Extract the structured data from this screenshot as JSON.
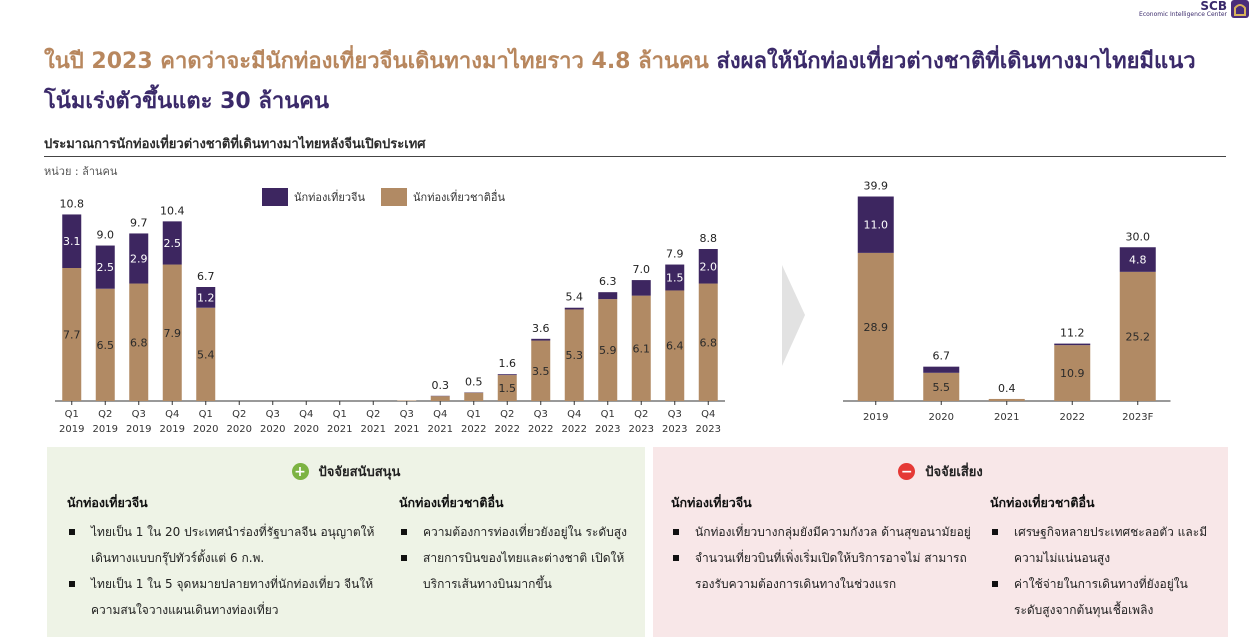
{
  "logo": {
    "brand": "SCB",
    "tagline": "Economic Intelligence Center"
  },
  "headline": {
    "part1": "ในปี 2023 คาดว่าจะมีนักท่องเที่ยวจีนเดินทางมาไทยราว 4.8 ล้านคน",
    "part2": "ส่งผลให้นักท่องเที่ยวต่างชาติที่เดินทางมาไทยมีแนวโน้มเร่งตัวขึ้นแตะ 30 ล้านคน"
  },
  "subtitle": "ประมาณการนักท่องเที่ยวต่างชาติที่เดินทางมาไทยหลังจีนเปิดประเทศ",
  "unit": "หน่วย : ล้านคน",
  "colors": {
    "china": "#3d2660",
    "others": "#b18a64",
    "arrow": "#e0e0e0"
  },
  "chart_data": [
    {
      "type": "bar",
      "stacked": true,
      "legend": [
        "นักท่องเที่ยวจีน",
        "นักท่องเที่ยวชาติอื่น"
      ],
      "categories": [
        [
          "Q1",
          "2019"
        ],
        [
          "Q2",
          "2019"
        ],
        [
          "Q3",
          "2019"
        ],
        [
          "Q4",
          "2019"
        ],
        [
          "Q1",
          "2020"
        ],
        [
          "Q2",
          "2020"
        ],
        [
          "Q3",
          "2020"
        ],
        [
          "Q4",
          "2020"
        ],
        [
          "Q1",
          "2021"
        ],
        [
          "Q2",
          "2021"
        ],
        [
          "Q3",
          "2021"
        ],
        [
          "Q4",
          "2021"
        ],
        [
          "Q1",
          "2022"
        ],
        [
          "Q2",
          "2022"
        ],
        [
          "Q3",
          "2022"
        ],
        [
          "Q4",
          "2022"
        ],
        [
          "Q1",
          "2023"
        ],
        [
          "Q2",
          "2023"
        ],
        [
          "Q3",
          "2023"
        ],
        [
          "Q4",
          "2023"
        ]
      ],
      "series": [
        {
          "name": "นักท่องเที่ยวชาติอื่น",
          "values": [
            7.7,
            6.5,
            6.8,
            7.9,
            5.4,
            0,
            0,
            0,
            0,
            0,
            0.03,
            0.28,
            0.48,
            1.5,
            3.5,
            5.3,
            5.9,
            6.1,
            6.4,
            6.8
          ],
          "labels": [
            "7.7",
            "6.5",
            "6.8",
            "7.9",
            "5.4",
            "",
            "",
            "",
            "",
            "",
            "",
            "",
            "",
            "1.5",
            "3.5",
            "5.3",
            "5.9",
            "6.1",
            "6.4",
            "6.8"
          ]
        },
        {
          "name": "นักท่องเที่ยวจีน",
          "values": [
            3.1,
            2.5,
            2.9,
            2.5,
            1.2,
            0,
            0,
            0,
            0,
            0,
            0,
            0.02,
            0.02,
            0.05,
            0.1,
            0.1,
            0.4,
            0.9,
            1.5,
            2.0
          ],
          "labels": [
            "3.1",
            "2.5",
            "2.9",
            "2.5",
            "1.2",
            "",
            "",
            "",
            "",
            "",
            "",
            "",
            "",
            "",
            "",
            "",
            "",
            "",
            "1.5",
            "2.0"
          ]
        }
      ],
      "totals": [
        "10.8",
        "9.0",
        "9.7",
        "10.4",
        "6.7",
        "",
        "",
        "",
        "",
        "",
        "",
        "0.3",
        "0.5",
        "1.6",
        "3.6",
        "5.4",
        "6.3",
        "7.0",
        "7.9",
        "8.8"
      ],
      "ylim": [
        0,
        11
      ]
    },
    {
      "type": "bar",
      "stacked": true,
      "categories": [
        "2019",
        "2020",
        "2021",
        "2022",
        "2023F"
      ],
      "series": [
        {
          "name": "นักท่องเที่ยวชาติอื่น",
          "values": [
            28.9,
            5.5,
            0.4,
            10.9,
            25.2
          ],
          "labels": [
            "28.9",
            "5.5",
            "",
            "10.9",
            "25.2"
          ]
        },
        {
          "name": "นักท่องเที่ยวจีน",
          "values": [
            11.0,
            1.2,
            0.0,
            0.3,
            4.8
          ],
          "labels": [
            "11.0",
            "",
            "",
            "",
            "4.8"
          ]
        }
      ],
      "totals": [
        "39.9",
        "6.7",
        "0.4",
        "11.2",
        "30.0"
      ],
      "ylim": [
        0,
        40
      ]
    }
  ],
  "support": {
    "title": "ปัจจัยสนับสนุน",
    "china": {
      "heading": "นักท่องเที่ยวจีน",
      "items": [
        "ไทยเป็น 1 ใน 20 ประเทศนำร่องที่รัฐบาลจีน อนุญาตให้เดินทางแบบกรุ๊ปทัวร์ตั้งแต่ 6 ก.พ.",
        "ไทยเป็น 1 ใน 5 จุดหมายปลายทางที่นักท่องเที่ยว จีนให้ความสนใจวางแผนเดินทางท่องเที่ยว"
      ]
    },
    "others": {
      "heading": "นักท่องเที่ยวชาติอื่น",
      "items": [
        "ความต้องการท่องเที่ยวยังอยู่ใน ระดับสูง",
        "สายการบินของไทยและต่างชาติ เปิดให้บริการเส้นทางบินมากขึ้น"
      ]
    }
  },
  "risk": {
    "title": "ปัจจัยเสี่ยง",
    "china": {
      "heading": "นักท่องเที่ยวจีน",
      "items": [
        "นักท่องเที่ยวบางกลุ่มยังมีความกังวล ด้านสุขอนามัยอยู่",
        "จำนวนเที่ยวบินที่เพิ่งเริ่มเปิดให้บริการอาจไม่ สามารถรองรับความต้องการเดินทางในช่วงแรก"
      ]
    },
    "others": {
      "heading": "นักท่องเที่ยวชาติอื่น",
      "items": [
        "เศรษฐกิจหลายประเทศชะลอตัว และมีความไม่แน่นอนสูง",
        "ค่าใช้จ่ายในการเดินทางที่ยังอยู่ใน ระดับสูงจากต้นทุนเชื้อเพลิง"
      ]
    }
  }
}
